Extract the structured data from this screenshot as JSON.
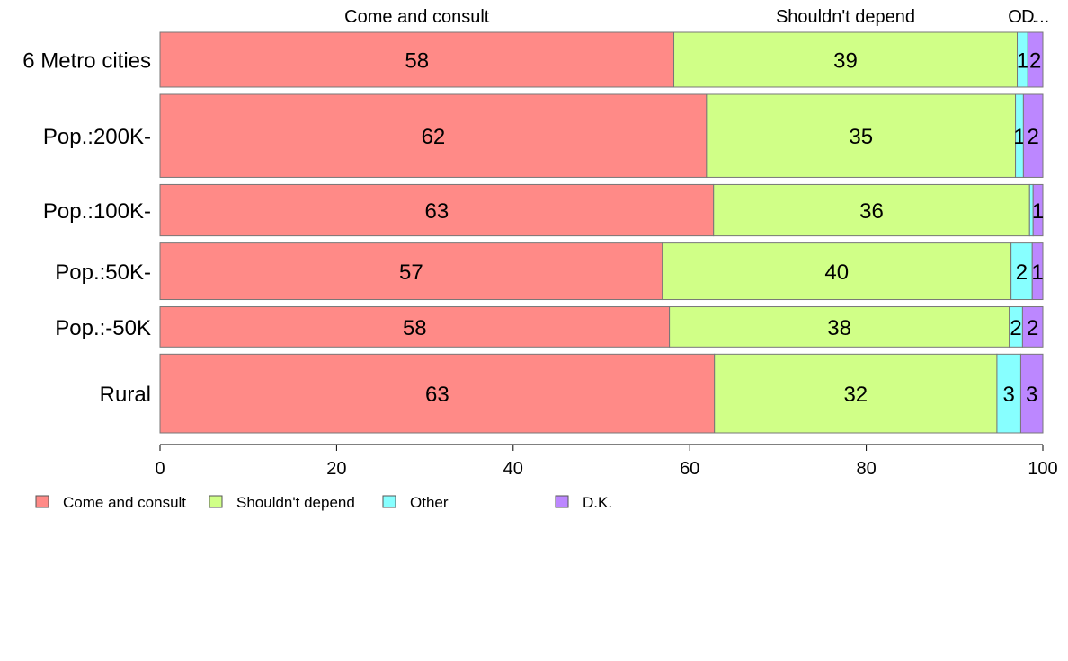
{
  "chart_data": {
    "type": "bar",
    "orientation": "horizontal",
    "stacked": true,
    "categories": [
      "6 Metro cities",
      "Pop.:200K-",
      "Pop.:100K-",
      "Pop.:50K-",
      "Pop.:-50K",
      "Rural"
    ],
    "category_weights": [
      0.64,
      0.97,
      0.6,
      0.66,
      0.47,
      0.92
    ],
    "series": [
      {
        "name": "Come and consult",
        "color": "#FF8A87",
        "values": [
          58.2,
          61.9,
          62.7,
          56.9,
          57.7,
          62.8
        ],
        "labels": [
          "58",
          "62",
          "63",
          "57",
          "58",
          "63"
        ]
      },
      {
        "name": "Shouldn't depend",
        "color": "#D0FF87",
        "values": [
          38.9,
          35.0,
          35.8,
          39.5,
          38.5,
          32.0
        ],
        "labels": [
          "39",
          "35",
          "36",
          "40",
          "38",
          "32"
        ]
      },
      {
        "name": "Other",
        "color": "#87FFFF",
        "values": [
          1.2,
          0.9,
          0.4,
          2.4,
          1.5,
          2.7
        ],
        "labels": [
          "1",
          "1",
          "",
          "2",
          "2",
          "3"
        ]
      },
      {
        "name": "D.K.",
        "color": "#BC87FF",
        "values": [
          1.7,
          2.2,
          1.1,
          1.2,
          2.3,
          2.5
        ],
        "labels": [
          "2",
          "2",
          "1",
          "1",
          "2",
          "3"
        ]
      }
    ],
    "top_labels": [
      "Come and consult",
      "Shouldn't depend",
      "O...",
      "D..."
    ],
    "xlim": [
      0,
      100
    ],
    "xticks": [
      "0",
      "20",
      "40",
      "60",
      "80",
      "100"
    ],
    "grid": false,
    "legend": {
      "position": "bottom",
      "items": [
        "Come and consult",
        "Shouldn't depend",
        "Other",
        "D.K."
      ]
    }
  }
}
